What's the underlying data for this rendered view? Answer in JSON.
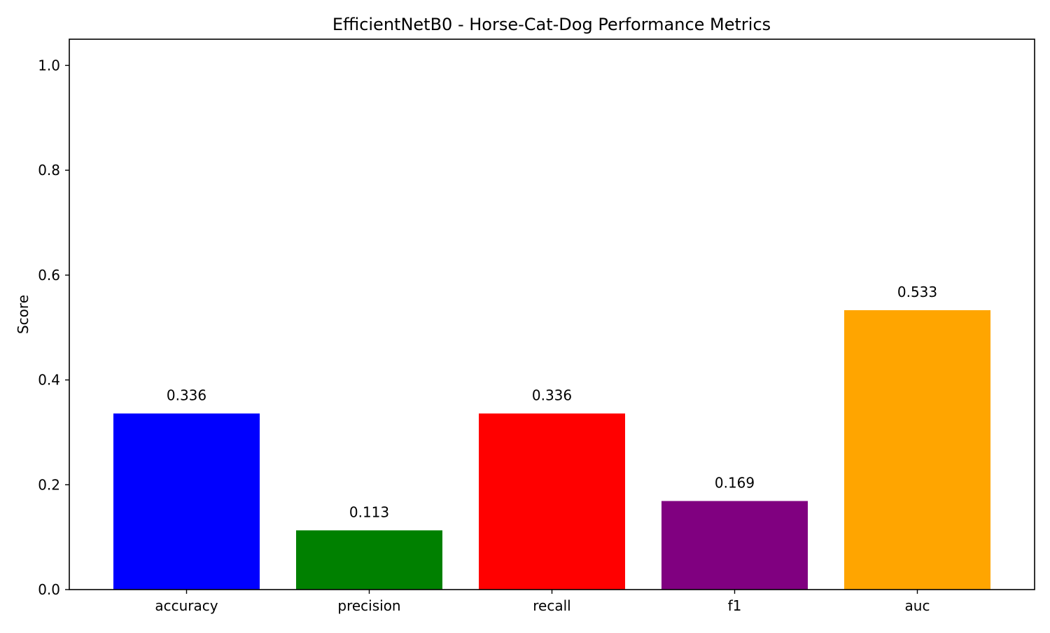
{
  "chart_data": {
    "type": "bar",
    "title": "EfficientNetB0 - Horse-Cat-Dog Performance Metrics",
    "xlabel": "",
    "ylabel": "Score",
    "categories": [
      "accuracy",
      "precision",
      "recall",
      "f1",
      "auc"
    ],
    "values": [
      0.336,
      0.113,
      0.336,
      0.169,
      0.533
    ],
    "value_labels": [
      "0.336",
      "0.113",
      "0.336",
      "0.169",
      "0.533"
    ],
    "colors": [
      "#0000ff",
      "#008000",
      "#ff0000",
      "#800080",
      "#ffa500"
    ],
    "ylim": [
      0,
      1.05
    ],
    "yticks": [
      0.0,
      0.2,
      0.4,
      0.6,
      0.8,
      1.0
    ],
    "ytick_labels": [
      "0.0",
      "0.2",
      "0.4",
      "0.6",
      "0.8",
      "1.0"
    ],
    "grid": false,
    "legend": "none"
  }
}
